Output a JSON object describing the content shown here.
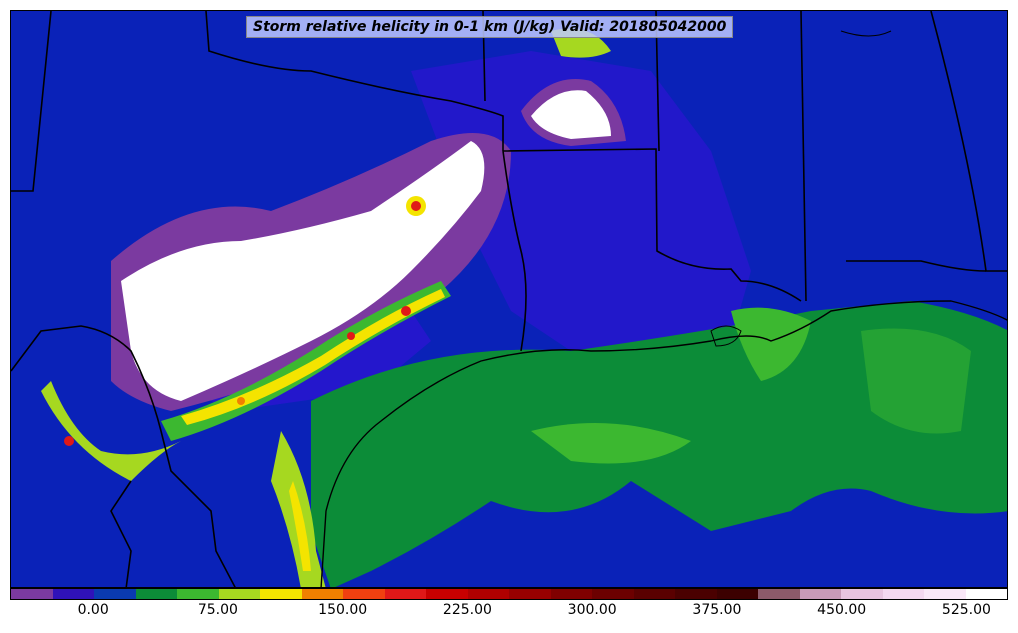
{
  "title": "Storm relative helicity in 0-1 km (J/kg) Valid: 201805042000",
  "colors": {
    "background_low": "#0a22b8",
    "mid_blue": "#3610d8",
    "purple": "#7b3aa0",
    "dark_green": "#0c8c38",
    "green": "#3cb830",
    "light_green": "#a6d820",
    "yellow": "#f4e400",
    "orange": "#f08000",
    "red": "#e01818",
    "white": "#ffffff",
    "border": "#000000"
  },
  "colorbar": {
    "swatches": [
      "#7b3aa0",
      "#2f12b8",
      "#0a3ab0",
      "#0c8c38",
      "#3cb830",
      "#a6d820",
      "#f4e400",
      "#f08000",
      "#f04010",
      "#e01818",
      "#c80000",
      "#b00000",
      "#980000",
      "#800000",
      "#6c0000",
      "#5a0000",
      "#4a0000",
      "#3c0000",
      "#8c5a6a",
      "#c89ab8",
      "#e8c4e0",
      "#f4d8f0",
      "#fae8f8",
      "#ffffff"
    ],
    "ticks": [
      "0.00",
      "75.00",
      "150.00",
      "225.00",
      "300.00",
      "375.00",
      "450.00",
      "525.00"
    ]
  }
}
